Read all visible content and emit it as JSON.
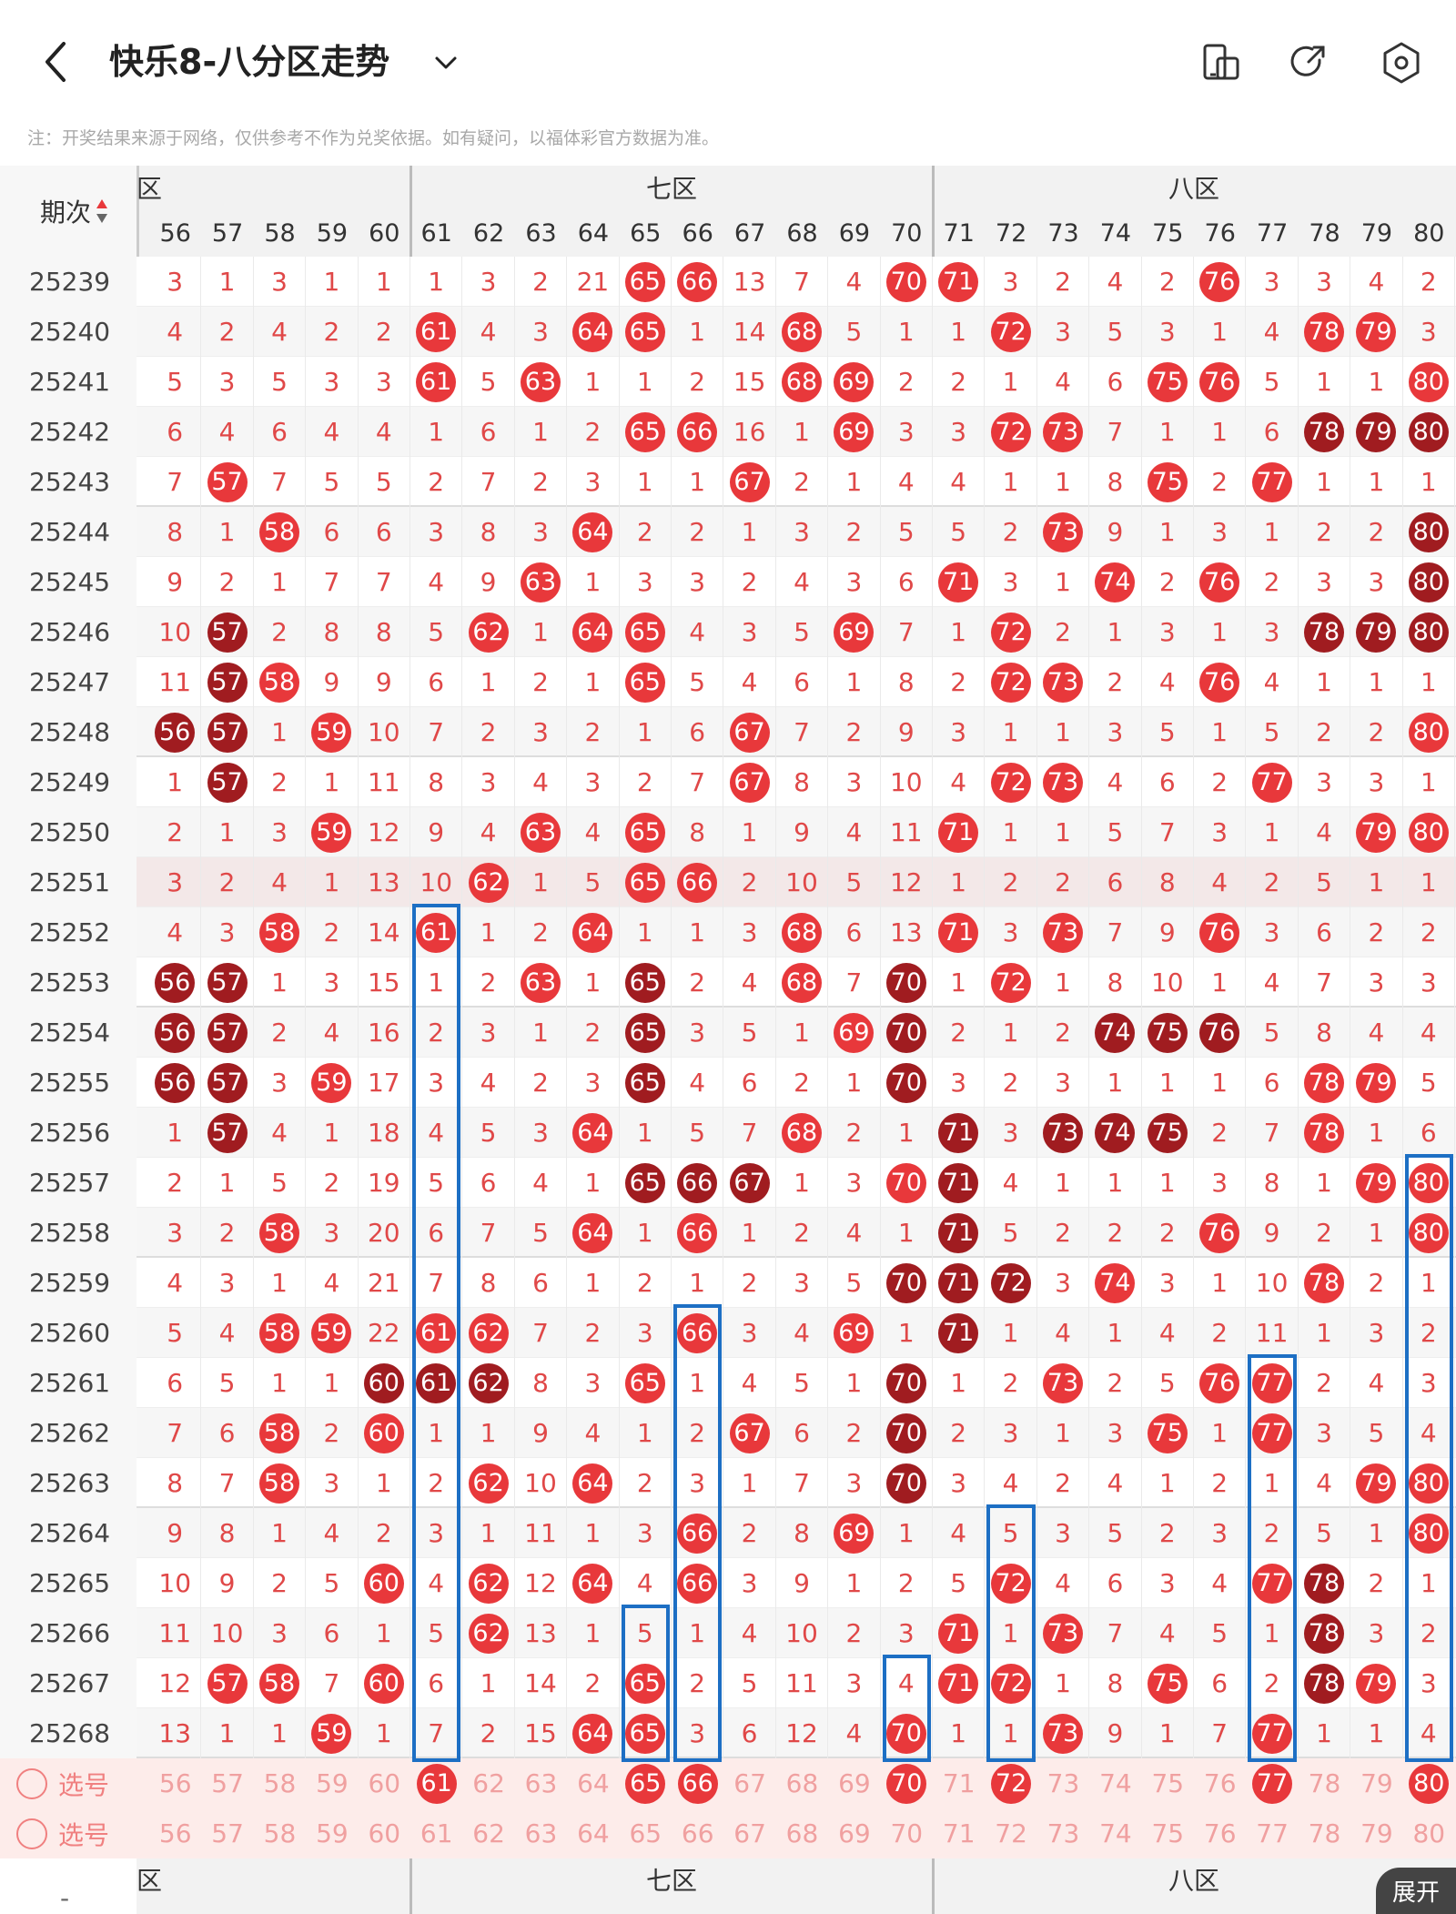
{
  "header": {
    "title": "快乐8-八分区走势",
    "back_icon": "chevron-left-icon",
    "dropdown_icon": "chevron-down-icon",
    "icons": [
      "layout-toggle-icon",
      "share-icon",
      "settings-icon"
    ]
  },
  "note": "注：开奖结果来源于网络，仅供参考不作为兑奖依据。如有疑问，以福体彩官方数据为准。",
  "table": {
    "period_header": "期次",
    "sort_icon": "sort-updown-icon",
    "zones": [
      "六区",
      "七区",
      "八区"
    ],
    "zones_visible": [
      "区",
      "七区",
      "八区"
    ],
    "columns": [
      "56",
      "57",
      "58",
      "59",
      "60",
      "61",
      "62",
      "63",
      "64",
      "65",
      "66",
      "67",
      "68",
      "69",
      "70",
      "71",
      "72",
      "73",
      "74",
      "75",
      "76",
      "77",
      "78",
      "79",
      "80"
    ],
    "rows": [
      {
        "period": "25239",
        "cells": [
          "3",
          "1",
          "3",
          "1",
          "1",
          "1",
          "3",
          "2",
          "21",
          "65",
          "66",
          "13",
          "7",
          "4",
          "70",
          "71",
          "3",
          "2",
          "4",
          "2",
          "76",
          "3",
          "3",
          "4",
          "2"
        ],
        "hits": [
          9,
          10,
          14,
          15,
          20
        ]
      },
      {
        "period": "25240",
        "cells": [
          "4",
          "2",
          "4",
          "2",
          "2",
          "61",
          "4",
          "3",
          "64",
          "65",
          "1",
          "14",
          "68",
          "5",
          "1",
          "1",
          "72",
          "3",
          "5",
          "3",
          "1",
          "4",
          "78",
          "79",
          "3"
        ],
        "hits": [
          5,
          8,
          9,
          12,
          16,
          22,
          23
        ]
      },
      {
        "period": "25241",
        "cells": [
          "5",
          "3",
          "5",
          "3",
          "3",
          "61",
          "5",
          "63",
          "1",
          "1",
          "2",
          "15",
          "68",
          "69",
          "2",
          "2",
          "1",
          "4",
          "6",
          "75",
          "76",
          "5",
          "1",
          "1",
          "80"
        ],
        "hits": [
          5,
          7,
          12,
          13,
          19,
          20,
          24
        ]
      },
      {
        "period": "25242",
        "cells": [
          "6",
          "4",
          "6",
          "4",
          "4",
          "1",
          "6",
          "1",
          "2",
          "65",
          "66",
          "16",
          "1",
          "69",
          "3",
          "3",
          "72",
          "73",
          "7",
          "1",
          "1",
          "6",
          "78",
          "79",
          "80"
        ],
        "hits": [
          9,
          10,
          13,
          16,
          17,
          22,
          23,
          24
        ],
        "dark": [
          22,
          23,
          24
        ]
      },
      {
        "period": "25243",
        "cells": [
          "7",
          "57",
          "7",
          "5",
          "5",
          "2",
          "7",
          "2",
          "3",
          "1",
          "1",
          "67",
          "2",
          "1",
          "4",
          "4",
          "1",
          "1",
          "8",
          "75",
          "2",
          "77",
          "1",
          "1",
          "1"
        ],
        "hits": [
          1,
          11,
          19,
          21
        ]
      },
      {
        "period": "25244",
        "cells": [
          "8",
          "1",
          "58",
          "6",
          "6",
          "3",
          "8",
          "3",
          "64",
          "2",
          "2",
          "1",
          "3",
          "2",
          "5",
          "5",
          "2",
          "73",
          "9",
          "1",
          "3",
          "1",
          "2",
          "2",
          "80"
        ],
        "hits": [
          2,
          8,
          17,
          24
        ],
        "dark": [
          24
        ]
      },
      {
        "period": "25245",
        "cells": [
          "9",
          "2",
          "1",
          "7",
          "7",
          "4",
          "9",
          "63",
          "1",
          "3",
          "3",
          "2",
          "4",
          "3",
          "6",
          "71",
          "3",
          "1",
          "74",
          "2",
          "76",
          "2",
          "3",
          "3",
          "80"
        ],
        "hits": [
          7,
          15,
          18,
          20,
          24
        ],
        "dark": [
          24
        ]
      },
      {
        "period": "25246",
        "cells": [
          "10",
          "57",
          "2",
          "8",
          "8",
          "5",
          "62",
          "1",
          "64",
          "65",
          "4",
          "3",
          "5",
          "69",
          "7",
          "1",
          "72",
          "2",
          "1",
          "3",
          "1",
          "3",
          "78",
          "79",
          "80"
        ],
        "hits": [
          1,
          6,
          8,
          9,
          13,
          16,
          22,
          23,
          24
        ],
        "dark": [
          1,
          22,
          23,
          24
        ]
      },
      {
        "period": "25247",
        "cells": [
          "11",
          "57",
          "58",
          "9",
          "9",
          "6",
          "1",
          "2",
          "1",
          "65",
          "5",
          "4",
          "6",
          "1",
          "8",
          "2",
          "72",
          "73",
          "2",
          "4",
          "76",
          "4",
          "1",
          "1",
          "1"
        ],
        "hits": [
          1,
          2,
          9,
          16,
          17,
          20
        ],
        "dark": [
          1
        ]
      },
      {
        "period": "25248",
        "cells": [
          "56",
          "57",
          "1",
          "59",
          "10",
          "7",
          "2",
          "3",
          "2",
          "1",
          "6",
          "67",
          "7",
          "2",
          "9",
          "3",
          "1",
          "1",
          "3",
          "5",
          "1",
          "5",
          "2",
          "2",
          "80"
        ],
        "hits": [
          0,
          1,
          3,
          11,
          24
        ],
        "dark": [
          0,
          1
        ]
      },
      {
        "period": "25249",
        "cells": [
          "1",
          "57",
          "2",
          "1",
          "11",
          "8",
          "3",
          "4",
          "3",
          "2",
          "7",
          "67",
          "8",
          "3",
          "10",
          "4",
          "72",
          "73",
          "4",
          "6",
          "2",
          "77",
          "3",
          "3",
          "1"
        ],
        "hits": [
          1,
          11,
          16,
          17,
          21
        ],
        "dark": [
          1
        ]
      },
      {
        "period": "25250",
        "cells": [
          "2",
          "1",
          "3",
          "59",
          "12",
          "9",
          "4",
          "63",
          "4",
          "65",
          "8",
          "1",
          "9",
          "4",
          "11",
          "71",
          "1",
          "1",
          "5",
          "7",
          "3",
          "1",
          "4",
          "79",
          "80"
        ],
        "hits": [
          3,
          7,
          9,
          15,
          23,
          24
        ]
      },
      {
        "period": "25251",
        "cells": [
          "3",
          "2",
          "4",
          "1",
          "13",
          "10",
          "62",
          "1",
          "5",
          "65",
          "66",
          "2",
          "10",
          "5",
          "12",
          "1",
          "2",
          "2",
          "6",
          "8",
          "4",
          "2",
          "5",
          "1",
          "1"
        ],
        "hits": [
          6,
          9,
          10
        ]
      },
      {
        "period": "25252",
        "cells": [
          "4",
          "3",
          "58",
          "2",
          "14",
          "61",
          "1",
          "2",
          "64",
          "1",
          "1",
          "3",
          "68",
          "6",
          "13",
          "71",
          "3",
          "73",
          "7",
          "9",
          "76",
          "3",
          "6",
          "2",
          "2"
        ],
        "hits": [
          2,
          5,
          8,
          12,
          15,
          17,
          20
        ]
      },
      {
        "period": "25253",
        "cells": [
          "56",
          "57",
          "1",
          "3",
          "15",
          "1",
          "2",
          "63",
          "1",
          "65",
          "2",
          "4",
          "68",
          "7",
          "70",
          "1",
          "72",
          "1",
          "8",
          "10",
          "1",
          "4",
          "7",
          "3",
          "3"
        ],
        "hits": [
          0,
          1,
          7,
          9,
          12,
          14,
          16
        ],
        "dark": [
          0,
          1,
          9,
          14
        ]
      },
      {
        "period": "25254",
        "cells": [
          "56",
          "57",
          "2",
          "4",
          "16",
          "2",
          "3",
          "1",
          "2",
          "65",
          "3",
          "5",
          "1",
          "69",
          "70",
          "2",
          "1",
          "2",
          "74",
          "75",
          "76",
          "5",
          "8",
          "4",
          "4"
        ],
        "hits": [
          0,
          1,
          9,
          13,
          14,
          18,
          19,
          20
        ],
        "dark": [
          0,
          1,
          9,
          14,
          18,
          19,
          20
        ]
      },
      {
        "period": "25255",
        "cells": [
          "56",
          "57",
          "3",
          "59",
          "17",
          "3",
          "4",
          "2",
          "3",
          "65",
          "4",
          "6",
          "2",
          "1",
          "70",
          "3",
          "2",
          "3",
          "1",
          "1",
          "1",
          "6",
          "78",
          "79",
          "5"
        ],
        "hits": [
          0,
          1,
          3,
          9,
          14,
          22,
          23
        ],
        "dark": [
          0,
          1,
          9,
          14
        ]
      },
      {
        "period": "25256",
        "cells": [
          "1",
          "57",
          "4",
          "1",
          "18",
          "4",
          "5",
          "3",
          "64",
          "1",
          "5",
          "7",
          "68",
          "2",
          "1",
          "71",
          "3",
          "73",
          "74",
          "75",
          "2",
          "7",
          "78",
          "1",
          "6"
        ],
        "hits": [
          1,
          8,
          12,
          15,
          17,
          18,
          19,
          22
        ],
        "dark": [
          1,
          15,
          17,
          18,
          19
        ]
      },
      {
        "period": "25257",
        "cells": [
          "2",
          "1",
          "5",
          "2",
          "19",
          "5",
          "6",
          "4",
          "1",
          "65",
          "66",
          "67",
          "1",
          "3",
          "70",
          "71",
          "4",
          "1",
          "1",
          "1",
          "3",
          "8",
          "1",
          "79",
          "80"
        ],
        "hits": [
          9,
          10,
          11,
          14,
          15,
          23,
          24
        ],
        "dark": [
          9,
          10,
          11,
          15
        ]
      },
      {
        "period": "25258",
        "cells": [
          "3",
          "2",
          "58",
          "3",
          "20",
          "6",
          "7",
          "5",
          "64",
          "1",
          "66",
          "1",
          "2",
          "4",
          "1",
          "71",
          "5",
          "2",
          "2",
          "2",
          "76",
          "9",
          "2",
          "1",
          "80"
        ],
        "hits": [
          2,
          8,
          10,
          15,
          20,
          24
        ],
        "dark": [
          15
        ]
      },
      {
        "period": "25259",
        "cells": [
          "4",
          "3",
          "1",
          "4",
          "21",
          "7",
          "8",
          "6",
          "1",
          "2",
          "1",
          "2",
          "3",
          "5",
          "70",
          "71",
          "72",
          "3",
          "74",
          "3",
          "1",
          "10",
          "78",
          "2",
          "1"
        ],
        "hits": [
          14,
          15,
          16,
          18,
          22
        ],
        "dark": [
          14,
          15,
          16
        ]
      },
      {
        "period": "25260",
        "cells": [
          "5",
          "4",
          "58",
          "59",
          "22",
          "61",
          "62",
          "7",
          "2",
          "3",
          "66",
          "3",
          "4",
          "69",
          "1",
          "71",
          "1",
          "4",
          "1",
          "4",
          "2",
          "11",
          "1",
          "3",
          "2"
        ],
        "hits": [
          2,
          3,
          5,
          6,
          10,
          13,
          15
        ],
        "dark": [
          15
        ]
      },
      {
        "period": "25261",
        "cells": [
          "6",
          "5",
          "1",
          "1",
          "60",
          "61",
          "62",
          "8",
          "3",
          "65",
          "1",
          "4",
          "5",
          "1",
          "70",
          "1",
          "2",
          "73",
          "2",
          "5",
          "76",
          "77",
          "2",
          "4",
          "3"
        ],
        "hits": [
          4,
          5,
          6,
          9,
          14,
          17,
          20,
          21
        ],
        "dark": [
          4,
          5,
          6,
          14
        ]
      },
      {
        "period": "25262",
        "cells": [
          "7",
          "6",
          "58",
          "2",
          "60",
          "1",
          "1",
          "9",
          "4",
          "1",
          "2",
          "67",
          "6",
          "2",
          "70",
          "2",
          "3",
          "1",
          "3",
          "75",
          "1",
          "77",
          "3",
          "5",
          "4"
        ],
        "hits": [
          2,
          4,
          11,
          14,
          19,
          21
        ],
        "dark": [
          14
        ]
      },
      {
        "period": "25263",
        "cells": [
          "8",
          "7",
          "58",
          "3",
          "1",
          "2",
          "62",
          "10",
          "64",
          "2",
          "3",
          "1",
          "7",
          "3",
          "70",
          "3",
          "4",
          "2",
          "4",
          "1",
          "2",
          "1",
          "4",
          "79",
          "80"
        ],
        "hits": [
          2,
          6,
          8,
          14,
          23,
          24
        ],
        "dark": [
          14
        ]
      },
      {
        "period": "25264",
        "cells": [
          "9",
          "8",
          "1",
          "4",
          "2",
          "3",
          "1",
          "11",
          "1",
          "3",
          "66",
          "2",
          "8",
          "69",
          "1",
          "4",
          "5",
          "3",
          "5",
          "2",
          "3",
          "2",
          "5",
          "1",
          "80"
        ],
        "hits": [
          10,
          13,
          24
        ]
      },
      {
        "period": "25265",
        "cells": [
          "10",
          "9",
          "2",
          "5",
          "60",
          "4",
          "62",
          "12",
          "64",
          "4",
          "66",
          "3",
          "9",
          "1",
          "2",
          "5",
          "72",
          "4",
          "6",
          "3",
          "4",
          "77",
          "78",
          "2",
          "1"
        ],
        "hits": [
          4,
          6,
          8,
          10,
          16,
          21,
          22
        ],
        "dark": [
          22
        ]
      },
      {
        "period": "25266",
        "cells": [
          "11",
          "10",
          "3",
          "6",
          "1",
          "5",
          "62",
          "13",
          "1",
          "5",
          "1",
          "4",
          "10",
          "2",
          "3",
          "71",
          "1",
          "73",
          "7",
          "4",
          "5",
          "1",
          "78",
          "3",
          "2"
        ],
        "hits": [
          6,
          15,
          17,
          22
        ],
        "dark": [
          22
        ]
      },
      {
        "period": "25267",
        "cells": [
          "12",
          "57",
          "58",
          "7",
          "60",
          "6",
          "1",
          "14",
          "2",
          "65",
          "2",
          "5",
          "11",
          "3",
          "4",
          "71",
          "72",
          "1",
          "8",
          "75",
          "6",
          "2",
          "78",
          "79",
          "3"
        ],
        "hits": [
          1,
          2,
          4,
          9,
          15,
          16,
          19,
          22,
          23
        ],
        "dark": [
          22
        ]
      },
      {
        "period": "25268",
        "cells": [
          "13",
          "1",
          "1",
          "59",
          "1",
          "7",
          "2",
          "15",
          "64",
          "65",
          "3",
          "6",
          "12",
          "4",
          "70",
          "1",
          "1",
          "73",
          "9",
          "1",
          "7",
          "77",
          "1",
          "1",
          "4"
        ],
        "hits": [
          3,
          8,
          9,
          14,
          17,
          21
        ]
      }
    ],
    "select_rows": [
      {
        "label": "选号",
        "picked": [
          5,
          9,
          10,
          14,
          16,
          21,
          24
        ]
      },
      {
        "label": "选号",
        "picked": []
      }
    ],
    "footer_zones": [
      "区",
      "七区",
      "八区"
    ],
    "footer_period_glyph": "-"
  },
  "expand_button": "展开",
  "colors": {
    "ball_red": "#e8383b",
    "ball_dark": "#a01c20",
    "text_red": "#e04848",
    "frame_blue": "#1d6fc4",
    "select_bg": "#fdecea"
  }
}
